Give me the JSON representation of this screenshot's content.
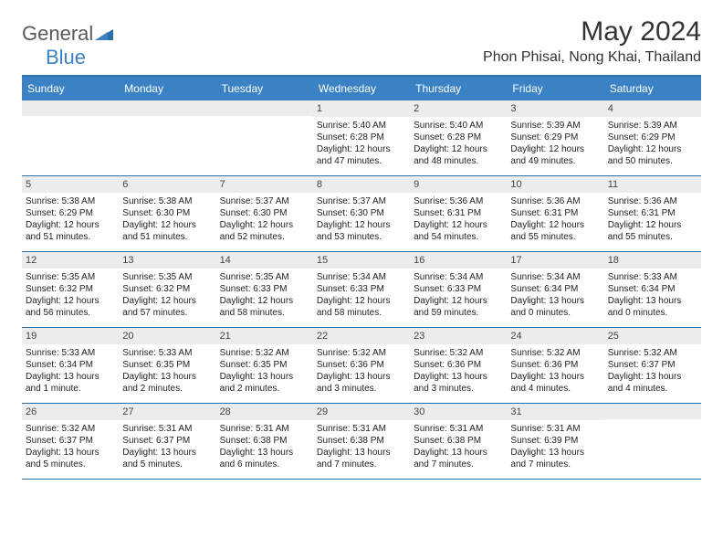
{
  "logo": {
    "part1": "General",
    "part2": "Blue"
  },
  "title": "May 2024",
  "location": "Phon Phisai, Nong Khai, Thailand",
  "colors": {
    "header_bg": "#3b82c4",
    "border": "#2b6fa8",
    "daynum_bg": "#ececec",
    "text": "#222222",
    "logo_gray": "#5a5a5a"
  },
  "dayNames": [
    "Sunday",
    "Monday",
    "Tuesday",
    "Wednesday",
    "Thursday",
    "Friday",
    "Saturday"
  ],
  "weeks": [
    [
      {
        "day": "",
        "lines": []
      },
      {
        "day": "",
        "lines": []
      },
      {
        "day": "",
        "lines": []
      },
      {
        "day": "1",
        "lines": [
          "Sunrise: 5:40 AM",
          "Sunset: 6:28 PM",
          "Daylight: 12 hours and 47 minutes."
        ]
      },
      {
        "day": "2",
        "lines": [
          "Sunrise: 5:40 AM",
          "Sunset: 6:28 PM",
          "Daylight: 12 hours and 48 minutes."
        ]
      },
      {
        "day": "3",
        "lines": [
          "Sunrise: 5:39 AM",
          "Sunset: 6:29 PM",
          "Daylight: 12 hours and 49 minutes."
        ]
      },
      {
        "day": "4",
        "lines": [
          "Sunrise: 5:39 AM",
          "Sunset: 6:29 PM",
          "Daylight: 12 hours and 50 minutes."
        ]
      }
    ],
    [
      {
        "day": "5",
        "lines": [
          "Sunrise: 5:38 AM",
          "Sunset: 6:29 PM",
          "Daylight: 12 hours and 51 minutes."
        ]
      },
      {
        "day": "6",
        "lines": [
          "Sunrise: 5:38 AM",
          "Sunset: 6:30 PM",
          "Daylight: 12 hours and 51 minutes."
        ]
      },
      {
        "day": "7",
        "lines": [
          "Sunrise: 5:37 AM",
          "Sunset: 6:30 PM",
          "Daylight: 12 hours and 52 minutes."
        ]
      },
      {
        "day": "8",
        "lines": [
          "Sunrise: 5:37 AM",
          "Sunset: 6:30 PM",
          "Daylight: 12 hours and 53 minutes."
        ]
      },
      {
        "day": "9",
        "lines": [
          "Sunrise: 5:36 AM",
          "Sunset: 6:31 PM",
          "Daylight: 12 hours and 54 minutes."
        ]
      },
      {
        "day": "10",
        "lines": [
          "Sunrise: 5:36 AM",
          "Sunset: 6:31 PM",
          "Daylight: 12 hours and 55 minutes."
        ]
      },
      {
        "day": "11",
        "lines": [
          "Sunrise: 5:36 AM",
          "Sunset: 6:31 PM",
          "Daylight: 12 hours and 55 minutes."
        ]
      }
    ],
    [
      {
        "day": "12",
        "lines": [
          "Sunrise: 5:35 AM",
          "Sunset: 6:32 PM",
          "Daylight: 12 hours and 56 minutes."
        ]
      },
      {
        "day": "13",
        "lines": [
          "Sunrise: 5:35 AM",
          "Sunset: 6:32 PM",
          "Daylight: 12 hours and 57 minutes."
        ]
      },
      {
        "day": "14",
        "lines": [
          "Sunrise: 5:35 AM",
          "Sunset: 6:33 PM",
          "Daylight: 12 hours and 58 minutes."
        ]
      },
      {
        "day": "15",
        "lines": [
          "Sunrise: 5:34 AM",
          "Sunset: 6:33 PM",
          "Daylight: 12 hours and 58 minutes."
        ]
      },
      {
        "day": "16",
        "lines": [
          "Sunrise: 5:34 AM",
          "Sunset: 6:33 PM",
          "Daylight: 12 hours and 59 minutes."
        ]
      },
      {
        "day": "17",
        "lines": [
          "Sunrise: 5:34 AM",
          "Sunset: 6:34 PM",
          "Daylight: 13 hours and 0 minutes."
        ]
      },
      {
        "day": "18",
        "lines": [
          "Sunrise: 5:33 AM",
          "Sunset: 6:34 PM",
          "Daylight: 13 hours and 0 minutes."
        ]
      }
    ],
    [
      {
        "day": "19",
        "lines": [
          "Sunrise: 5:33 AM",
          "Sunset: 6:34 PM",
          "Daylight: 13 hours and 1 minute."
        ]
      },
      {
        "day": "20",
        "lines": [
          "Sunrise: 5:33 AM",
          "Sunset: 6:35 PM",
          "Daylight: 13 hours and 2 minutes."
        ]
      },
      {
        "day": "21",
        "lines": [
          "Sunrise: 5:32 AM",
          "Sunset: 6:35 PM",
          "Daylight: 13 hours and 2 minutes."
        ]
      },
      {
        "day": "22",
        "lines": [
          "Sunrise: 5:32 AM",
          "Sunset: 6:36 PM",
          "Daylight: 13 hours and 3 minutes."
        ]
      },
      {
        "day": "23",
        "lines": [
          "Sunrise: 5:32 AM",
          "Sunset: 6:36 PM",
          "Daylight: 13 hours and 3 minutes."
        ]
      },
      {
        "day": "24",
        "lines": [
          "Sunrise: 5:32 AM",
          "Sunset: 6:36 PM",
          "Daylight: 13 hours and 4 minutes."
        ]
      },
      {
        "day": "25",
        "lines": [
          "Sunrise: 5:32 AM",
          "Sunset: 6:37 PM",
          "Daylight: 13 hours and 4 minutes."
        ]
      }
    ],
    [
      {
        "day": "26",
        "lines": [
          "Sunrise: 5:32 AM",
          "Sunset: 6:37 PM",
          "Daylight: 13 hours and 5 minutes."
        ]
      },
      {
        "day": "27",
        "lines": [
          "Sunrise: 5:31 AM",
          "Sunset: 6:37 PM",
          "Daylight: 13 hours and 5 minutes."
        ]
      },
      {
        "day": "28",
        "lines": [
          "Sunrise: 5:31 AM",
          "Sunset: 6:38 PM",
          "Daylight: 13 hours and 6 minutes."
        ]
      },
      {
        "day": "29",
        "lines": [
          "Sunrise: 5:31 AM",
          "Sunset: 6:38 PM",
          "Daylight: 13 hours and 7 minutes."
        ]
      },
      {
        "day": "30",
        "lines": [
          "Sunrise: 5:31 AM",
          "Sunset: 6:38 PM",
          "Daylight: 13 hours and 7 minutes."
        ]
      },
      {
        "day": "31",
        "lines": [
          "Sunrise: 5:31 AM",
          "Sunset: 6:39 PM",
          "Daylight: 13 hours and 7 minutes."
        ]
      },
      {
        "day": "",
        "lines": []
      }
    ]
  ]
}
